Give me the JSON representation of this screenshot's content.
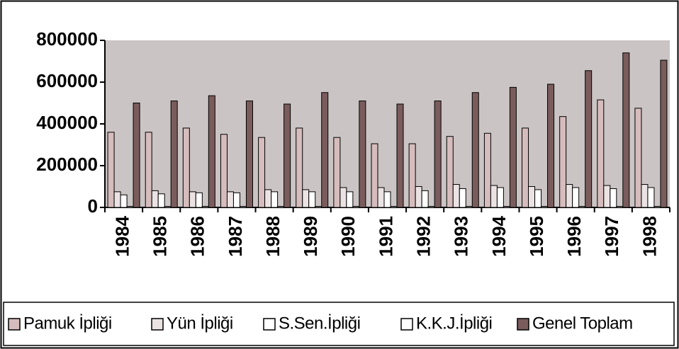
{
  "chart_data": {
    "type": "bar",
    "categories": [
      "1984",
      "1985",
      "1986",
      "1987",
      "1988",
      "1989",
      "1990",
      "1991",
      "1992",
      "1993",
      "1994",
      "1995",
      "1996",
      "1997",
      "1998"
    ],
    "series": [
      {
        "name": "Pamuk İpliği",
        "color": "#d6bcbc",
        "values": [
          360000,
          360000,
          380000,
          350000,
          335000,
          380000,
          335000,
          305000,
          305000,
          340000,
          355000,
          380000,
          435000,
          515000,
          475000
        ]
      },
      {
        "name": "Yün İpliği",
        "color": "#ebe3e3",
        "values": [
          75000,
          80000,
          75000,
          75000,
          85000,
          85000,
          95000,
          95000,
          100000,
          110000,
          105000,
          100000,
          110000,
          105000,
          110000
        ]
      },
      {
        "name": "S.Sen.İpliği",
        "color": "#ffffff",
        "values": [
          60000,
          65000,
          70000,
          70000,
          75000,
          75000,
          75000,
          75000,
          80000,
          90000,
          95000,
          85000,
          95000,
          90000,
          95000
        ]
      },
      {
        "name": "K.K.J.İpliği",
        "color": "#ffffff",
        "values": [
          5000,
          5000,
          5000,
          5000,
          5000,
          5000,
          5000,
          5000,
          5000,
          5000,
          5000,
          5000,
          5000,
          5000,
          5000
        ]
      },
      {
        "name": "Genel Toplam",
        "color": "#7a5c5c",
        "values": [
          500000,
          510000,
          535000,
          510000,
          495000,
          550000,
          510000,
          495000,
          510000,
          550000,
          575000,
          590000,
          655000,
          740000,
          705000
        ]
      }
    ],
    "ylim": [
      0,
      800000
    ],
    "yticks": [
      0,
      200000,
      400000,
      600000,
      800000
    ],
    "grid": false,
    "legend": "bottom"
  }
}
